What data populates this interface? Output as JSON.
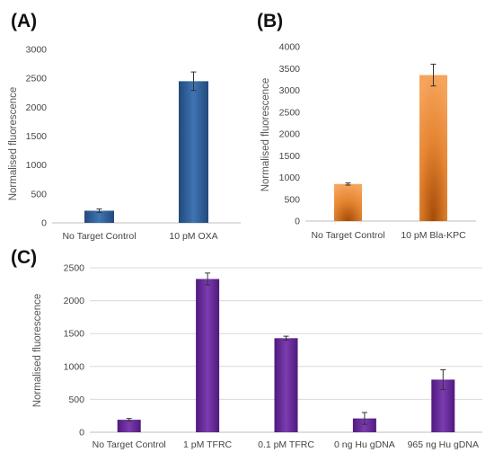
{
  "chart_data": [
    {
      "type": "bar",
      "panel_label": "(A)",
      "ylabel": "Normalised fluorescence",
      "ylim": [
        0,
        3000
      ],
      "yticks": [
        0,
        500,
        1000,
        1500,
        2000,
        2500,
        3000
      ],
      "categories": [
        "No Target Control",
        "10 pM OXA"
      ],
      "values": [
        210,
        2450
      ],
      "errors": [
        30,
        160
      ],
      "color": "#2e5c94",
      "grid": false
    },
    {
      "type": "bar",
      "panel_label": "(B)",
      "ylabel": "Normalised fluorescence",
      "ylim": [
        0,
        4000
      ],
      "yticks": [
        0,
        500,
        1000,
        1500,
        2000,
        2500,
        3000,
        3500,
        4000
      ],
      "categories": [
        "No Target Control",
        "10 pM Bla-KPC"
      ],
      "values": [
        850,
        3350
      ],
      "errors": [
        25,
        250
      ],
      "color": "#d9731f",
      "grid": false
    },
    {
      "type": "bar",
      "panel_label": "(C)",
      "ylabel": "Normalised fluorescence",
      "ylim": [
        0,
        2500
      ],
      "yticks": [
        0,
        500,
        1000,
        1500,
        2000,
        2500
      ],
      "categories": [
        "No Target Control",
        "1 pM TFRC",
        "0.1 pM TFRC",
        "0 ng Hu gDNA",
        "965 ng Hu gDNA"
      ],
      "values": [
        190,
        2330,
        1430,
        210,
        800
      ],
      "errors": [
        20,
        90,
        30,
        90,
        150
      ],
      "color": "#6a2c9c",
      "grid": true
    }
  ]
}
